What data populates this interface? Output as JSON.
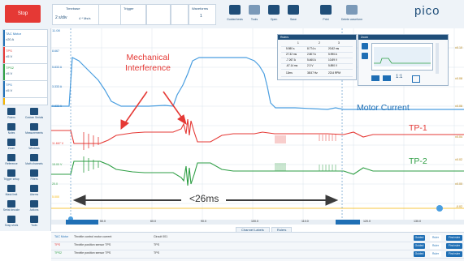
{
  "toolbar": {
    "stop_label": "Stop",
    "timebase_label": "Timebase",
    "timebase_value": "2 s/div",
    "samples_value": "4 * Ms/s",
    "trigger_label": "Trigger",
    "waveforms_label": "Waveforms",
    "waveforms_value": "1",
    "actions": [
      {
        "label": "Guided tests"
      },
      {
        "label": "Tools"
      },
      {
        "label": "Open"
      },
      {
        "label": "Save"
      },
      {
        "label": "Print"
      },
      {
        "label": "Delete waveform"
      }
    ],
    "logo": "pico"
  },
  "channels": [
    {
      "name": "TAC Motor",
      "range": "±20 A",
      "color": "#1f6fb5"
    },
    {
      "name": "TPS",
      "range": "±5 V",
      "color": "#e53935"
    },
    {
      "name": "TPS2",
      "range": "±5 V",
      "color": "#2e9e44"
    },
    {
      "name": "TPS",
      "range": "±5 V",
      "color": "#1f6fb5"
    },
    {
      "name": "",
      "range": "",
      "color": "#f5b400"
    }
  ],
  "tools": [
    {
      "label": "Rulers"
    },
    {
      "label": "Custom Serials"
    },
    {
      "label": "Notes"
    },
    {
      "label": "Measurements"
    },
    {
      "label": "Zoom"
    },
    {
      "label": "Windows"
    },
    {
      "label": "Reference"
    },
    {
      "label": "Math channels"
    },
    {
      "label": "Trigger setup"
    },
    {
      "label": "Filters"
    },
    {
      "label": "Mask limit"
    },
    {
      "label": "Alarms"
    },
    {
      "label": "Serial decode"
    },
    {
      "label": "Actions"
    },
    {
      "label": "Snap shots"
    },
    {
      "label": "Tools"
    }
  ],
  "annotations": {
    "interference": [
      "Mechanical",
      "Interference"
    ],
    "motor_current": "Motor Current",
    "tp1": "TP-1",
    "tp2": "TP-2",
    "duration": "<26ms"
  },
  "axis": {
    "x_ticks": [
      "50.0",
      "60.0",
      "90.0",
      "100.0",
      "110.0",
      "120.0",
      "130.0"
    ],
    "y_left_top": "11.08",
    "y_right": [
      "±0.10",
      "±0.08",
      "±0.06",
      "±0.04",
      "±0.02",
      "±0.00",
      "-0.02"
    ],
    "left_ticks": [
      "8.667",
      "5.833 A",
      "3.333 A",
      "0.833 A",
      "11.667 V",
      "15.00 V",
      "20.0",
      "5.000"
    ]
  },
  "tabs": [
    "Channel Labels",
    "Rulers"
  ],
  "bottom_rows": [
    {
      "name": "TAC Motor",
      "desc": "Throttle control motor current",
      "circuit": "Circuit 001",
      "color": "#1f6fb5"
    },
    {
      "name": "TPS",
      "desc": "Throttle position sensor TPS",
      "circuit": "TPS",
      "color": "#e53935"
    },
    {
      "name": "TPS2",
      "desc": "Throttle position sensor TPS",
      "circuit": "TPS",
      "color": "#2e9e44"
    }
  ],
  "row_buttons": [
    "Guided",
    "Ruler",
    "Find ruler"
  ],
  "stats_panel": {
    "title": "Rulers",
    "rows": [
      [
        "1",
        "2",
        "3"
      ],
      [
        "5.980 s",
        "8.774 s",
        "20.82 ms"
      ],
      [
        "27.32 ms",
        "2.807 A",
        "5.990 A"
      ],
      [
        "-7.267 A",
        "5.460 A",
        "10.89 V"
      ],
      [
        "-67.14 ms",
        "2.3 V",
        "5.890 V"
      ],
      [
        "12ms",
        "38.57 Hz",
        "2214 RPM"
      ]
    ]
  },
  "zoom_panel": {
    "title": "Zoom",
    "ratio": "1:1"
  }
}
